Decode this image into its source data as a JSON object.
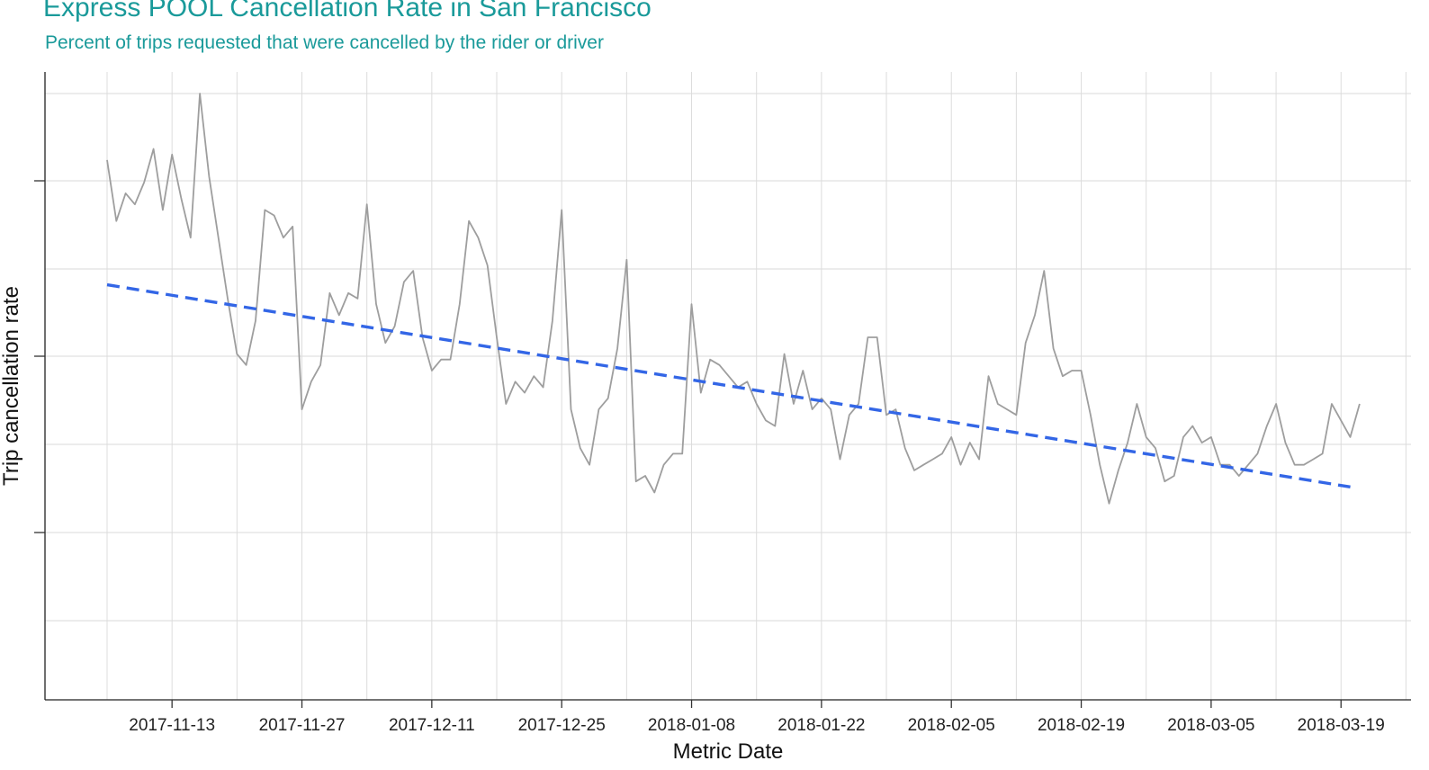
{
  "title": "Express POOL Cancellation Rate in San Francisco",
  "subtitle": "Percent of trips requested that were cancelled by the rider or driver",
  "chart_data": {
    "type": "line",
    "title": "Express POOL Cancellation Rate in San Francisco",
    "subtitle": "Percent of trips requested that were cancelled by the rider or driver",
    "xlabel": "Metric Date",
    "ylabel": "Trip cancellation rate",
    "x_ticks": [
      "2017-11-13",
      "2017-11-27",
      "2017-12-11",
      "2017-12-25",
      "2018-01-08",
      "2018-01-22",
      "2018-02-05",
      "2018-02-19",
      "2018-03-05",
      "2018-03-19"
    ],
    "y_ticks_labeled": false,
    "ylim": [
      0,
      1
    ],
    "grid": true,
    "series": [
      {
        "kind": "observed",
        "color": "#9e9e9e",
        "x_start": "2017-11-06",
        "x_end": "2018-03-20",
        "values": [
          0.88,
          0.77,
          0.82,
          0.8,
          0.84,
          0.9,
          0.79,
          0.89,
          0.81,
          0.74,
          1.0,
          0.85,
          0.74,
          0.63,
          0.53,
          0.51,
          0.59,
          0.79,
          0.78,
          0.74,
          0.76,
          0.43,
          0.48,
          0.51,
          0.64,
          0.6,
          0.64,
          0.63,
          0.8,
          0.62,
          0.55,
          0.58,
          0.66,
          0.68,
          0.56,
          0.5,
          0.52,
          0.52,
          0.62,
          0.77,
          0.74,
          0.69,
          0.56,
          0.44,
          0.48,
          0.46,
          0.49,
          0.47,
          0.59,
          0.79,
          0.43,
          0.36,
          0.33,
          0.43,
          0.45,
          0.54,
          0.7,
          0.3,
          0.31,
          0.28,
          0.33,
          0.35,
          0.35,
          0.62,
          0.46,
          0.52,
          0.51,
          0.49,
          0.47,
          0.48,
          0.44,
          0.41,
          0.4,
          0.53,
          0.44,
          0.5,
          0.43,
          0.45,
          0.43,
          0.34,
          0.42,
          0.44,
          0.56,
          0.56,
          0.42,
          0.43,
          0.36,
          0.32,
          0.33,
          0.34,
          0.35,
          0.38,
          0.33,
          0.37,
          0.34,
          0.49,
          0.44,
          0.43,
          0.42,
          0.55,
          0.6,
          0.68,
          0.54,
          0.49,
          0.5,
          0.5,
          0.42,
          0.33,
          0.26,
          0.32,
          0.37,
          0.44,
          0.38,
          0.36,
          0.3,
          0.31,
          0.38,
          0.4,
          0.37,
          0.38,
          0.33,
          0.33,
          0.31,
          0.33,
          0.35,
          0.4,
          0.44,
          0.37,
          0.33,
          0.33,
          0.34,
          0.35,
          0.44,
          0.41,
          0.38,
          0.44
        ]
      },
      {
        "kind": "trend",
        "color": "#3366e6",
        "style": "dashed",
        "x_start": "2017-11-06",
        "x_end": "2018-03-20",
        "y_start": 0.655,
        "y_end": 0.29
      }
    ]
  }
}
